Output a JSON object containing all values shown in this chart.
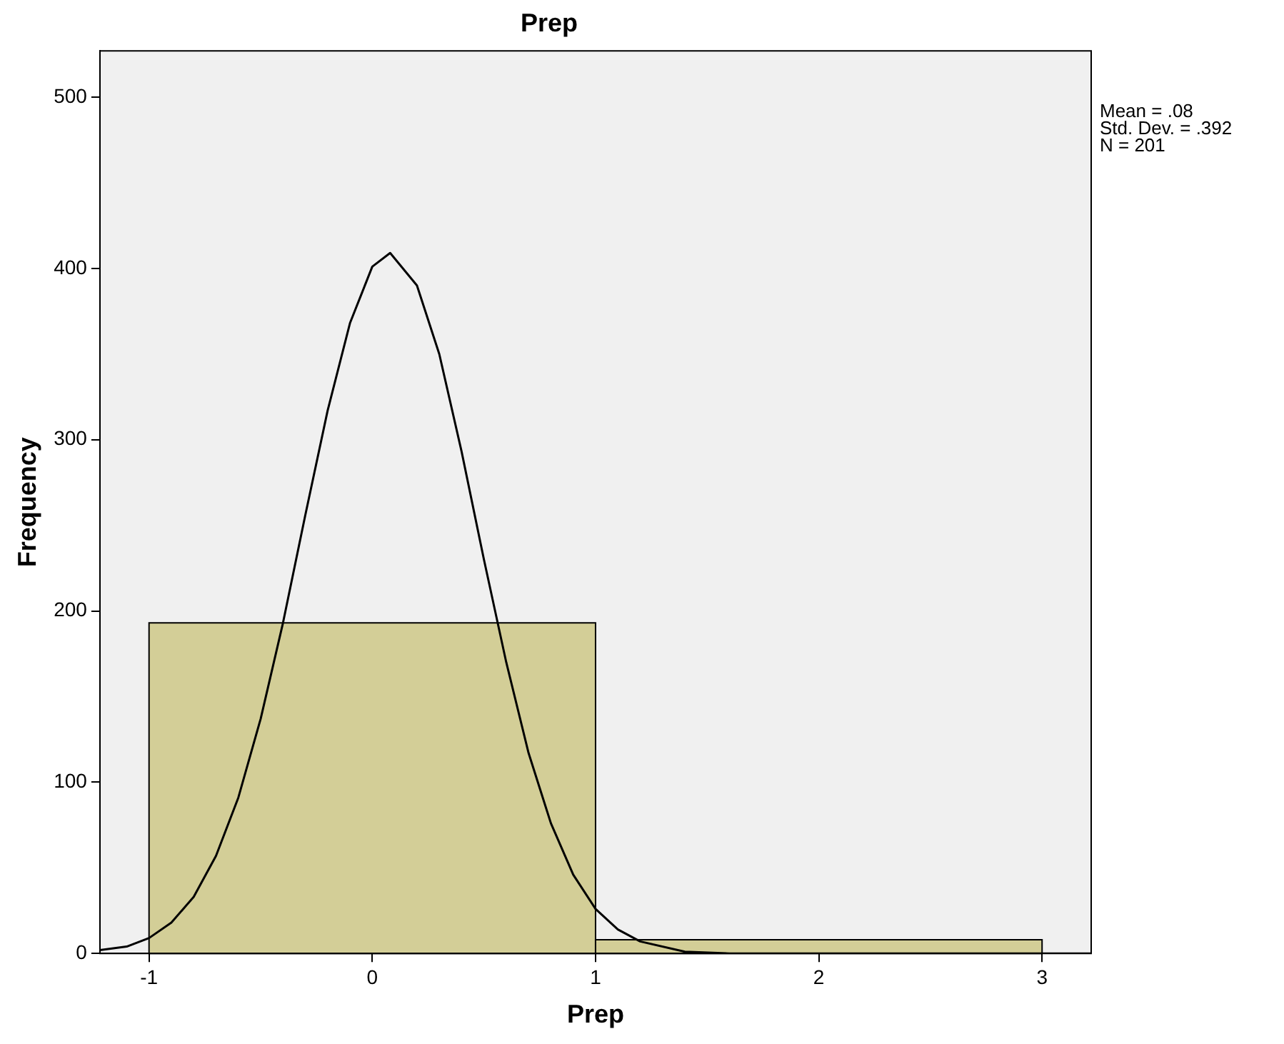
{
  "chart_data": {
    "type": "histogram",
    "title": "Prep",
    "xlabel": "Prep",
    "ylabel": "Frequency",
    "bins": [
      -1,
      1,
      3
    ],
    "values": [
      193,
      8
    ],
    "color": "#d3ce97",
    "series": [
      {
        "type": "line",
        "color": "#000000",
        "x": [
          -1.22,
          -1.1,
          -1.0,
          -0.9,
          -0.8,
          -0.7,
          -0.6,
          -0.5,
          -0.4,
          -0.3,
          -0.2,
          -0.1,
          0,
          0.08,
          0.2,
          0.3,
          0.4,
          0.5,
          0.6,
          0.7,
          0.8,
          0.9,
          1.0,
          1.1,
          1.2,
          1.4,
          1.6,
          1.8,
          3.22
        ],
        "values": [
          2,
          4,
          9,
          18,
          33,
          57,
          91,
          137,
          193,
          256,
          317,
          368,
          401,
          409,
          390,
          350,
          293,
          230,
          170,
          117,
          76,
          46,
          26,
          14,
          7,
          1,
          0,
          0,
          0
        ]
      }
    ],
    "xlim": [
      -1.22,
      3.22
    ],
    "ylim": [
      0,
      527
    ],
    "xticks": [
      -1,
      0,
      1,
      2,
      3
    ],
    "yticks": [
      0,
      100,
      200,
      300,
      400,
      500
    ],
    "grid": false,
    "legend": false,
    "marker": "none",
    "line_style": "solid",
    "annotations": [
      "Mean = .08",
      "Std. Dev. = .392",
      "N = 201"
    ]
  }
}
